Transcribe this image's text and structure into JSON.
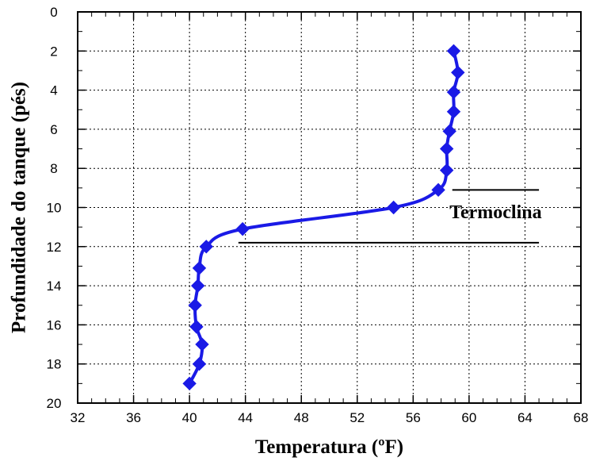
{
  "chart_data": {
    "type": "line",
    "xlabel": "Temperatura (ºF)",
    "ylabel": "Profundidade do tanque (pés)",
    "xlim": [
      32,
      68
    ],
    "ylim": [
      0,
      20
    ],
    "y_inverted": true,
    "x_ticks": [
      "32",
      "36",
      "40",
      "44",
      "48",
      "52",
      "56",
      "60",
      "64",
      "68"
    ],
    "y_ticks": [
      "0",
      "2",
      "4",
      "6",
      "8",
      "10",
      "12",
      "14",
      "16",
      "18",
      "20"
    ],
    "grid": true,
    "marker": "diamond",
    "series_color": "#1a1ae6",
    "series": [
      {
        "points": [
          {
            "x": 58.9,
            "y": 2
          },
          {
            "x": 59.2,
            "y": 3.1
          },
          {
            "x": 58.9,
            "y": 4.1
          },
          {
            "x": 58.9,
            "y": 5.1
          },
          {
            "x": 58.6,
            "y": 6.1
          },
          {
            "x": 58.4,
            "y": 7
          },
          {
            "x": 58.4,
            "y": 8.1
          },
          {
            "x": 57.8,
            "y": 9.1
          },
          {
            "x": 54.6,
            "y": 10
          },
          {
            "x": 43.8,
            "y": 11.1
          },
          {
            "x": 41.2,
            "y": 12
          },
          {
            "x": 40.7,
            "y": 13.1
          },
          {
            "x": 40.6,
            "y": 14
          },
          {
            "x": 40.4,
            "y": 15
          },
          {
            "x": 40.5,
            "y": 16.1
          },
          {
            "x": 40.9,
            "y": 17
          },
          {
            "x": 40.7,
            "y": 18
          },
          {
            "x": 40.0,
            "y": 19
          }
        ]
      }
    ],
    "annotations": {
      "label": "Termoclina",
      "upper_line": {
        "x": [
          58.8,
          65
        ],
        "y": 9.1
      },
      "lower_line": {
        "x": [
          43.5,
          65
        ],
        "y": 11.8
      }
    }
  }
}
